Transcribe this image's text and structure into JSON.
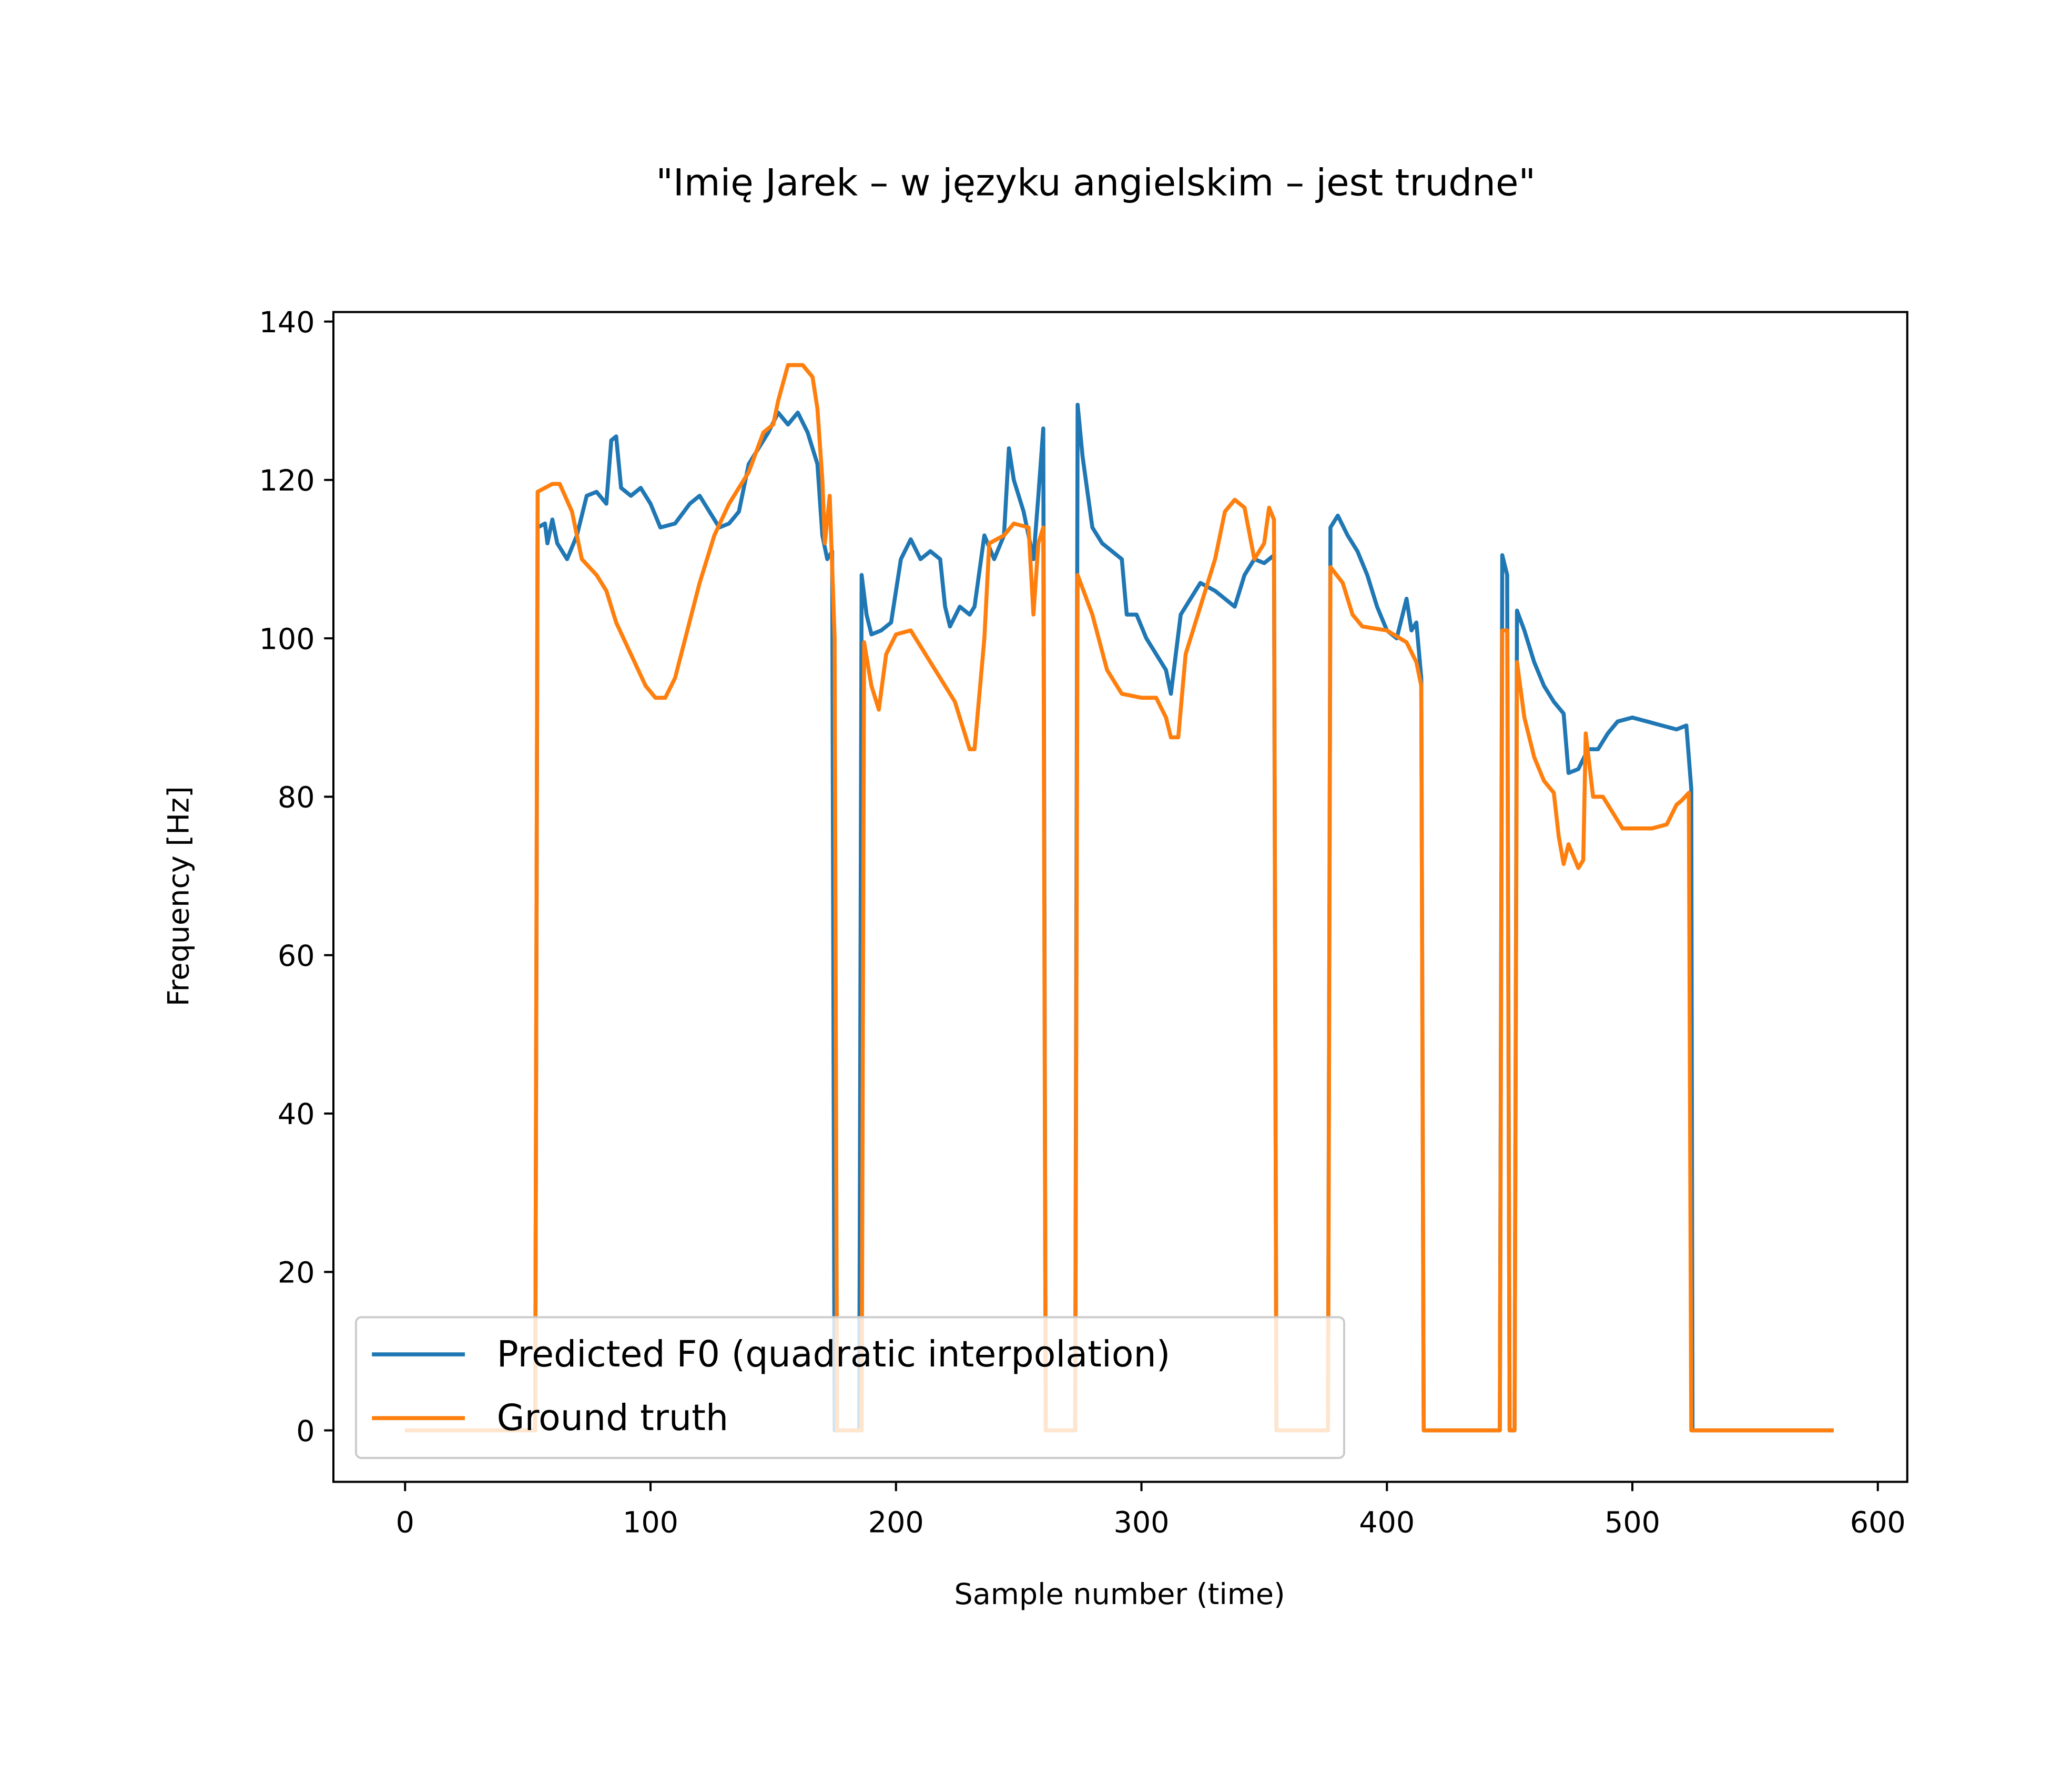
{
  "chart_data": {
    "type": "line",
    "title": "\"Imię  Jarek –  w języku angielskim – jest trudne\"",
    "xlabel": "Sample number (time)",
    "ylabel": "Frequency [Hz]",
    "xlim": [
      -29.2,
      612
    ],
    "ylim": [
      -6.5,
      141.2
    ],
    "xticks": [
      0,
      100,
      200,
      300,
      400,
      500,
      600
    ],
    "yticks": [
      0,
      20,
      40,
      60,
      80,
      100,
      120,
      140
    ],
    "legend": "lower left",
    "series": [
      {
        "name": "Predicted F0 (quadratic interpolation)",
        "color": "#1f77b4",
        "x": [
          0,
          53,
          54,
          57,
          58,
          60,
          62,
          66,
          70,
          74,
          78,
          82,
          84,
          86,
          88,
          92,
          96,
          100,
          104,
          110,
          116,
          120,
          124,
          128,
          132,
          136,
          140,
          144,
          148,
          152,
          156,
          160,
          164,
          168,
          170,
          172,
          174,
          175,
          185,
          186,
          188,
          190,
          194,
          198,
          202,
          206,
          210,
          214,
          218,
          220,
          222,
          226,
          230,
          232,
          236,
          240,
          244,
          246,
          248,
          252,
          256,
          258,
          260,
          261,
          273,
          274,
          276,
          280,
          284,
          288,
          292,
          294,
          298,
          302,
          306,
          310,
          312,
          316,
          320,
          324,
          330,
          334,
          338,
          342,
          346,
          350,
          352,
          354,
          355,
          376,
          377,
          380,
          384,
          388,
          392,
          396,
          400,
          404,
          408,
          410,
          412,
          414,
          415,
          446,
          447,
          449,
          450,
          452,
          453,
          456,
          460,
          464,
          468,
          472,
          474,
          478,
          482,
          486,
          490,
          494,
          500,
          506,
          512,
          518,
          522,
          524,
          524.5,
          582
        ],
        "values": [
          0,
          0,
          114,
          114.5,
          112,
          115,
          112,
          110,
          113,
          118,
          118.5,
          117,
          125,
          125.5,
          119,
          118,
          119,
          117,
          114,
          114.5,
          117,
          118,
          116,
          114,
          114.5,
          116,
          122,
          124,
          126,
          128.5,
          127,
          128.5,
          126,
          122,
          113,
          110,
          111,
          0,
          0,
          108,
          103,
          100.5,
          101,
          102,
          110,
          112.5,
          110,
          111,
          110,
          104,
          101.5,
          104,
          103,
          104,
          113,
          110,
          113,
          124,
          120,
          116,
          110,
          118,
          126.5,
          0,
          0,
          129.5,
          123,
          114,
          112,
          111,
          110,
          103,
          103,
          100,
          98,
          96,
          93,
          103,
          105,
          107,
          106,
          105,
          104,
          108,
          110,
          109.5,
          110,
          110.5,
          0,
          0,
          114,
          115.5,
          113,
          111,
          108,
          104,
          101,
          100,
          105,
          101,
          102,
          95,
          0,
          0,
          110.5,
          108,
          0,
          0,
          103.5,
          101,
          97,
          94,
          92,
          90.5,
          83,
          83.5,
          86,
          86,
          88,
          89.5,
          90,
          89.5,
          89,
          88.5,
          89,
          81,
          0,
          0
        ]
      },
      {
        "name": "Ground truth",
        "color": "#ff7f0e",
        "x": [
          0,
          53,
          54,
          60,
          63,
          68,
          72,
          78,
          82,
          86,
          92,
          98,
          102,
          106,
          110,
          115,
          120,
          126,
          132,
          140,
          146,
          150,
          152,
          156,
          162,
          166,
          168,
          170,
          171,
          173,
          175,
          176,
          186,
          187,
          190,
          193,
          196,
          200,
          206,
          212,
          218,
          224,
          230,
          232,
          236,
          238,
          244,
          248,
          254,
          256,
          258,
          260,
          261,
          273,
          274,
          280,
          286,
          292,
          300,
          306,
          310,
          312,
          315,
          318,
          324,
          330,
          334,
          338,
          342,
          346,
          350,
          352,
          354,
          355,
          376,
          377,
          382,
          386,
          390,
          400,
          408,
          412,
          414,
          415,
          446,
          447,
          449,
          450,
          452,
          453,
          456,
          460,
          464,
          468,
          470,
          472,
          474,
          478,
          480,
          481,
          484,
          488,
          492,
          496,
          508,
          514,
          518,
          520,
          523,
          524,
          582
        ],
        "values": [
          0,
          0,
          118.5,
          119.5,
          119.5,
          116,
          110,
          108,
          106,
          102,
          98,
          94,
          92.5,
          92.5,
          95,
          101,
          107,
          113,
          117,
          121,
          126,
          127,
          130,
          134.5,
          134.5,
          133,
          129,
          120,
          112,
          118,
          100,
          0,
          0,
          99.5,
          94,
          91,
          98,
          100.5,
          101,
          98,
          95,
          92,
          86,
          86,
          100,
          112,
          113,
          114.5,
          114,
          103,
          112,
          114,
          0,
          0,
          108,
          103,
          96,
          93,
          92.5,
          92.5,
          90,
          87.5,
          87.5,
          98,
          104,
          110,
          116,
          117.5,
          116.5,
          110,
          112,
          116.5,
          115,
          0,
          0,
          109,
          107,
          103,
          101.5,
          101,
          99.5,
          97,
          94,
          0,
          0,
          101,
          101,
          0,
          0,
          97,
          90,
          85,
          82,
          80.5,
          75,
          71.5,
          74,
          71,
          72,
          88,
          80,
          80,
          78,
          76,
          76,
          76.5,
          79,
          79.5,
          80.5,
          0,
          0
        ]
      }
    ]
  }
}
